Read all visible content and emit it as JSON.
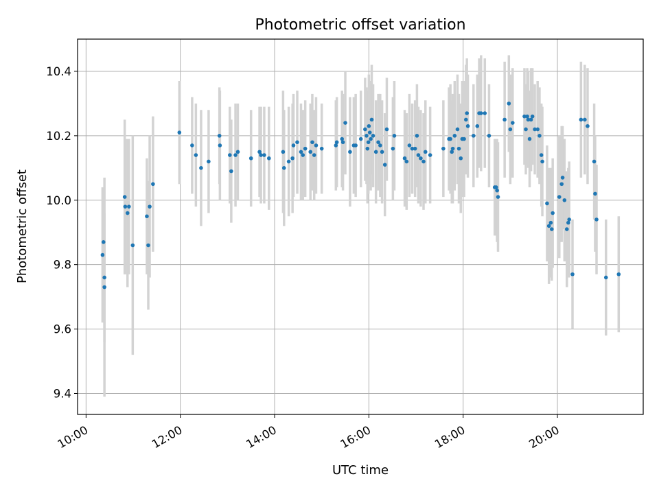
{
  "chart_data": {
    "type": "scatter",
    "title": "Photometric offset variation",
    "xlabel": "UTC time",
    "ylabel": "Photometric offset",
    "xlim": [
      9.82,
      21.82
    ],
    "ylim": [
      9.335,
      10.5
    ],
    "grid": true,
    "x_ticks": [
      {
        "value": 10,
        "label": "10:00"
      },
      {
        "value": 12,
        "label": "12:00"
      },
      {
        "value": 14,
        "label": "14:00"
      },
      {
        "value": 16,
        "label": "16:00"
      },
      {
        "value": 18,
        "label": "18:00"
      },
      {
        "value": 20,
        "label": "20:00"
      }
    ],
    "y_ticks": [
      {
        "value": 9.4,
        "label": "9.4"
      },
      {
        "value": 9.6,
        "label": "9.6"
      },
      {
        "value": 9.8,
        "label": "9.8"
      },
      {
        "value": 10.0,
        "label": "10.0"
      },
      {
        "value": 10.2,
        "label": "10.2"
      },
      {
        "value": 10.4,
        "label": "10.4"
      }
    ],
    "colors": {
      "point": "#1f77b4",
      "errorbar": "#d3d3d3",
      "grid": "#b0b0b0"
    },
    "series": [
      {
        "name": "Photometric offset",
        "points": [
          [
            10.35,
            9.83,
            0.21
          ],
          [
            10.37,
            9.87,
            0.15
          ],
          [
            10.39,
            9.76,
            0.2
          ],
          [
            10.39,
            9.73,
            0.34
          ],
          [
            10.82,
            10.01,
            0.24
          ],
          [
            10.83,
            9.98,
            0.21
          ],
          [
            10.88,
            9.96,
            0.23
          ],
          [
            10.91,
            9.98,
            0.21
          ],
          [
            10.99,
            9.86,
            0.34
          ],
          [
            11.29,
            9.95,
            0.18
          ],
          [
            11.32,
            9.86,
            0.2
          ],
          [
            11.35,
            9.98,
            0.22
          ],
          [
            11.42,
            10.05,
            0.21
          ],
          [
            11.98,
            10.21,
            0.16
          ],
          [
            12.25,
            10.17,
            0.15
          ],
          [
            12.33,
            10.14,
            0.16
          ],
          [
            12.44,
            10.1,
            0.18
          ],
          [
            12.6,
            10.12,
            0.16
          ],
          [
            12.83,
            10.2,
            0.15
          ],
          [
            12.84,
            10.17,
            0.17
          ],
          [
            13.05,
            10.14,
            0.15
          ],
          [
            13.08,
            10.09,
            0.16
          ],
          [
            13.17,
            10.14,
            0.16
          ],
          [
            13.22,
            10.15,
            0.15
          ],
          [
            13.5,
            10.13,
            0.15
          ],
          [
            13.68,
            10.15,
            0.14
          ],
          [
            13.71,
            10.14,
            0.15
          ],
          [
            13.78,
            10.14,
            0.15
          ],
          [
            13.88,
            10.13,
            0.16
          ],
          [
            14.18,
            10.15,
            0.19
          ],
          [
            14.2,
            10.1,
            0.18
          ],
          [
            14.3,
            10.12,
            0.17
          ],
          [
            14.38,
            10.13,
            0.17
          ],
          [
            14.4,
            10.17,
            0.16
          ],
          [
            14.48,
            10.18,
            0.16
          ],
          [
            14.56,
            10.15,
            0.15
          ],
          [
            14.6,
            10.14,
            0.14
          ],
          [
            14.65,
            10.16,
            0.15
          ],
          [
            14.76,
            10.15,
            0.15
          ],
          [
            14.8,
            10.18,
            0.15
          ],
          [
            14.84,
            10.14,
            0.14
          ],
          [
            14.88,
            10.17,
            0.15
          ],
          [
            15.0,
            10.16,
            0.14
          ],
          [
            15.3,
            10.17,
            0.14
          ],
          [
            15.32,
            10.18,
            0.14
          ],
          [
            15.43,
            10.19,
            0.15
          ],
          [
            15.45,
            10.18,
            0.15
          ],
          [
            15.5,
            10.24,
            0.16
          ],
          [
            15.6,
            10.15,
            0.17
          ],
          [
            15.68,
            10.17,
            0.15
          ],
          [
            15.72,
            10.17,
            0.16
          ],
          [
            15.83,
            10.19,
            0.15
          ],
          [
            15.92,
            10.22,
            0.16
          ],
          [
            15.95,
            10.2,
            0.15
          ],
          [
            15.97,
            10.16,
            0.17
          ],
          [
            15.99,
            10.18,
            0.16
          ],
          [
            16.0,
            10.23,
            0.16
          ],
          [
            16.02,
            10.21,
            0.16
          ],
          [
            16.04,
            10.19,
            0.16
          ],
          [
            16.06,
            10.25,
            0.17
          ],
          [
            16.09,
            10.2,
            0.16
          ],
          [
            16.15,
            10.15,
            0.16
          ],
          [
            16.2,
            10.18,
            0.15
          ],
          [
            16.24,
            10.17,
            0.16
          ],
          [
            16.28,
            10.15,
            0.16
          ],
          [
            16.34,
            10.11,
            0.16
          ],
          [
            16.38,
            10.22,
            0.16
          ],
          [
            16.51,
            10.16,
            0.16
          ],
          [
            16.54,
            10.2,
            0.17
          ],
          [
            16.76,
            10.13,
            0.15
          ],
          [
            16.8,
            10.12,
            0.15
          ],
          [
            16.86,
            10.17,
            0.16
          ],
          [
            16.92,
            10.16,
            0.14
          ],
          [
            16.98,
            10.16,
            0.15
          ],
          [
            17.02,
            10.2,
            0.16
          ],
          [
            17.05,
            10.14,
            0.15
          ],
          [
            17.1,
            10.13,
            0.15
          ],
          [
            17.16,
            10.12,
            0.15
          ],
          [
            17.2,
            10.15,
            0.16
          ],
          [
            17.3,
            10.14,
            0.15
          ],
          [
            17.58,
            10.16,
            0.15
          ],
          [
            17.7,
            10.19,
            0.16
          ],
          [
            17.73,
            10.19,
            0.17
          ],
          [
            17.76,
            10.15,
            0.16
          ],
          [
            17.78,
            10.16,
            0.17
          ],
          [
            17.82,
            10.2,
            0.17
          ],
          [
            17.88,
            10.22,
            0.17
          ],
          [
            17.91,
            10.16,
            0.17
          ],
          [
            17.95,
            10.13,
            0.17
          ],
          [
            17.98,
            10.19,
            0.18
          ],
          [
            18.02,
            10.19,
            0.18
          ],
          [
            18.06,
            10.25,
            0.17
          ],
          [
            18.08,
            10.27,
            0.17
          ],
          [
            18.1,
            10.23,
            0.16
          ],
          [
            18.22,
            10.2,
            0.16
          ],
          [
            18.3,
            10.23,
            0.16
          ],
          [
            18.34,
            10.27,
            0.17
          ],
          [
            18.38,
            10.27,
            0.18
          ],
          [
            18.46,
            10.27,
            0.17
          ],
          [
            18.55,
            10.2,
            0.16
          ],
          [
            18.67,
            10.04,
            0.15
          ],
          [
            18.7,
            10.04,
            0.15
          ],
          [
            18.72,
            10.03,
            0.16
          ],
          [
            18.74,
            10.01,
            0.17
          ],
          [
            18.88,
            10.25,
            0.18
          ],
          [
            18.97,
            10.3,
            0.15
          ],
          [
            19.0,
            10.22,
            0.17
          ],
          [
            19.05,
            10.24,
            0.17
          ],
          [
            19.3,
            10.26,
            0.15
          ],
          [
            19.33,
            10.22,
            0.14
          ],
          [
            19.36,
            10.26,
            0.15
          ],
          [
            19.38,
            10.25,
            0.15
          ],
          [
            19.41,
            10.19,
            0.15
          ],
          [
            19.44,
            10.25,
            0.16
          ],
          [
            19.47,
            10.26,
            0.15
          ],
          [
            19.52,
            10.22,
            0.14
          ],
          [
            19.58,
            10.22,
            0.15
          ],
          [
            19.62,
            10.2,
            0.15
          ],
          [
            19.66,
            10.14,
            0.16
          ],
          [
            19.68,
            10.12,
            0.17
          ],
          [
            19.78,
            9.99,
            0.18
          ],
          [
            19.82,
            9.92,
            0.18
          ],
          [
            19.86,
            9.93,
            0.17
          ],
          [
            19.88,
            9.91,
            0.16
          ],
          [
            19.9,
            9.96,
            0.17
          ],
          [
            20.04,
            10.01,
            0.19
          ],
          [
            20.09,
            10.05,
            0.18
          ],
          [
            20.11,
            10.07,
            0.16
          ],
          [
            20.15,
            10.0,
            0.19
          ],
          [
            20.2,
            9.91,
            0.18
          ],
          [
            20.23,
            9.93,
            0.17
          ],
          [
            20.25,
            9.94,
            0.18
          ],
          [
            20.32,
            9.77,
            0.17
          ],
          [
            20.5,
            10.25,
            0.18
          ],
          [
            20.58,
            10.25,
            0.17
          ],
          [
            20.64,
            10.23,
            0.18
          ],
          [
            20.78,
            10.12,
            0.18
          ],
          [
            20.8,
            10.02,
            0.18
          ],
          [
            20.83,
            9.94,
            0.17
          ],
          [
            21.03,
            9.76,
            0.18
          ],
          [
            21.3,
            9.77,
            0.18
          ]
        ]
      }
    ]
  }
}
